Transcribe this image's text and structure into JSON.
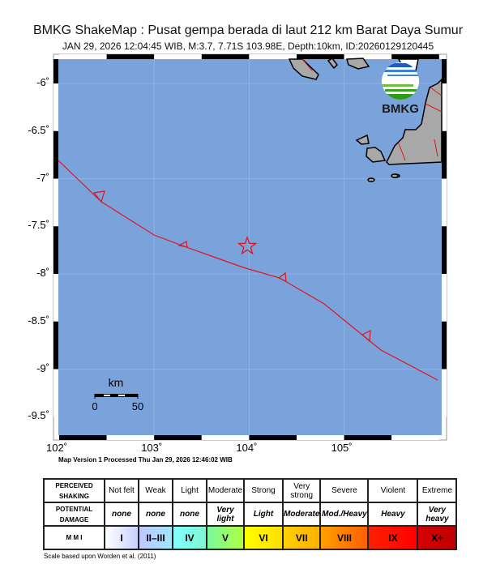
{
  "title": "BMKG ShakeMap : Pusat gempa berada di laut 212 km Barat Daya Sumur",
  "subtitle": "JAN 29, 2026 12:04:45 WIB, M:3.7, 7.71S 103.98E, Depth:10km, ID:20260129120445",
  "logo_text": "BMKG",
  "map": {
    "epicenter": {
      "lat": -7.71,
      "lon": 103.98,
      "symbol": "star-icon",
      "color": "#e0141e"
    },
    "lon_range": [
      102,
      106
    ],
    "lat_range": [
      -9.7,
      -5.7
    ],
    "lat_labels": [
      "-6˚",
      "-6.5˚",
      "-7˚",
      "-7.5˚",
      "-8˚",
      "-8.5˚",
      "-9˚",
      "-9.5˚"
    ],
    "lon_labels": [
      "102˚",
      "103˚",
      "104˚",
      "105˚"
    ],
    "sea_color": "#7aa3dc",
    "land_color": "#9a9a9a",
    "fault_color": "#e0141e",
    "scale_bar": {
      "unit": "km",
      "labels": [
        "0",
        "50"
      ]
    }
  },
  "version_text": "Map Version 1 Processed Thu Jan 29, 2026 12:46:02 WIB",
  "legend": {
    "row_headers": [
      "PERCEIVED SHAKING",
      "POTENTIAL DAMAGE",
      "M M I"
    ],
    "shaking": [
      "Not felt",
      "Weak",
      "Light",
      "Moderate",
      "Strong",
      "Very strong",
      "Severe",
      "Violent",
      "Extreme"
    ],
    "damage": [
      "none",
      "none",
      "none",
      "Very light",
      "Light",
      "Moderate",
      "Mod./Heavy",
      "Heavy",
      "Very heavy"
    ],
    "mmi": [
      "I",
      "II–III",
      "IV",
      "V",
      "VI",
      "VII",
      "VIII",
      "IX",
      "X+"
    ],
    "mmi_colors": [
      [
        "#ffffff",
        "#c8d0ff"
      ],
      [
        "#bfc8ff",
        "#a0e6ff"
      ],
      [
        "#80ffff",
        "#7ef7d0"
      ],
      [
        "#7af7a0",
        "#b0ff40"
      ],
      [
        "#ffff00",
        "#ffe000"
      ],
      [
        "#ffd000",
        "#ffb000"
      ],
      [
        "#ffa000",
        "#ff6000"
      ],
      [
        "#ff2000",
        "#ff0000"
      ],
      [
        "#d40000",
        "#c00000"
      ]
    ],
    "note": "Scale based upon Worden et al. (2011)"
  }
}
